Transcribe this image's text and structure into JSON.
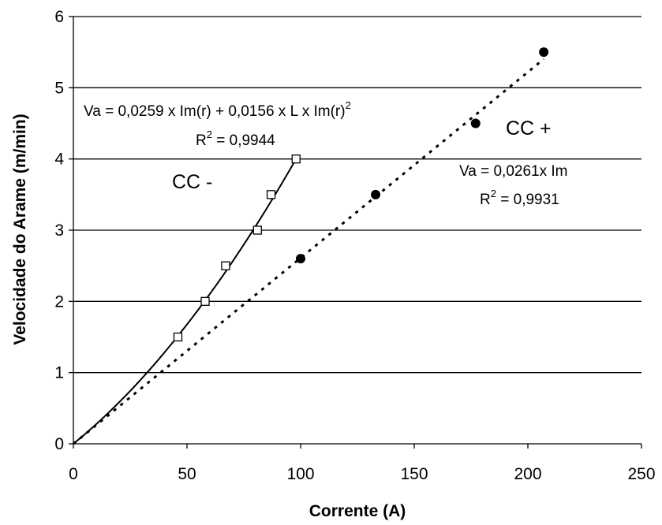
{
  "chart_data": {
    "type": "scatter",
    "title": "",
    "xlabel": "Corrente (A)",
    "ylabel": "Velocidade do Arame (m/min)",
    "xlim": [
      0,
      250
    ],
    "ylim": [
      0,
      6
    ],
    "x_ticks": [
      0,
      50,
      100,
      150,
      200,
      250
    ],
    "y_ticks": [
      0,
      1,
      2,
      3,
      4,
      5,
      6
    ],
    "x_tick_labels": [
      "0",
      "50",
      "100",
      "150",
      "200",
      "250"
    ],
    "y_tick_labels": [
      "0",
      "1",
      "2",
      "3",
      "4",
      "5",
      "6"
    ],
    "grid": "horizontal",
    "series": [
      {
        "name": "CC -",
        "marker": "open-square",
        "color": "#000000",
        "x": [
          46,
          58,
          67,
          81,
          87,
          98
        ],
        "y": [
          1.5,
          2.0,
          2.5,
          3.0,
          3.5,
          4.0
        ],
        "trendline": {
          "style": "solid",
          "x_range": [
            0,
            98
          ],
          "equation": "Va = 0,0259 x Im(r) + 0,0156 x L x Im(r)",
          "equation_exponent": "2",
          "r2_label": "R",
          "r2_exponent": "2",
          "r2_value": " = 0,9944"
        }
      },
      {
        "name": "CC +",
        "marker": "filled-circle",
        "color": "#000000",
        "x": [
          100,
          133,
          177,
          207
        ],
        "y": [
          2.6,
          3.5,
          4.5,
          5.5
        ],
        "trendline": {
          "style": "dotted",
          "x_range": [
            0,
            207
          ],
          "equation": "Va = 0,0261x Im",
          "r2_label": "R",
          "r2_exponent": "2",
          "r2_value": " = 0,9931"
        }
      }
    ]
  }
}
